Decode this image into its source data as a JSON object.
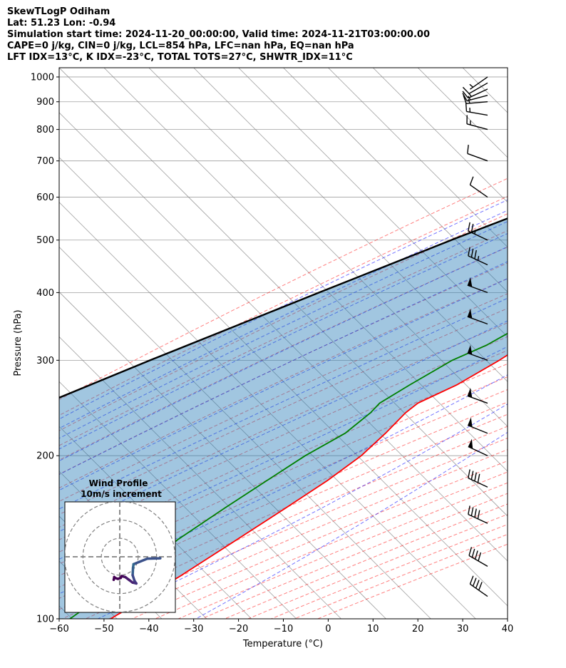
{
  "header": {
    "lines": [
      "SkewTLogP Odiham",
      "Lat: 51.23   Lon: -0.94",
      "Simulation start time: 2024-11-20_00:00:00, Valid time: 2024-11-21T03:00:00.00",
      "CAPE=0 j/kg, CIN=0 j/kg, LCL=854 hPa, LFC=nan hPa, EQ=nan hPa",
      "LFT IDX=13$^\\circ$C, K IDX=-23$^\\circ$C, TOTAL TOTS=27$^\\circ$C, SHWTR_IDX=11$^\\circ$C"
    ]
  },
  "chart_data": {
    "type": "line",
    "subtype": "skew-T log-P",
    "xlabel": "Temperature ($^\\circ$C)",
    "ylabel": "Pressure (hPa)",
    "xlim": [
      -60,
      40
    ],
    "ylim": [
      1040,
      100
    ],
    "xticks": [
      -60,
      -50,
      -40,
      -30,
      -20,
      -10,
      0,
      10,
      20,
      30,
      40
    ],
    "yticks": [
      1000,
      900,
      800,
      700,
      600,
      500,
      400,
      300,
      200,
      100
    ],
    "y_scale": "log",
    "grid": true,
    "colors": {
      "temperature": "#ff0000",
      "dewpoint": "#008000",
      "parcel": "#000000",
      "cape_fill": "#1f77b4",
      "dry_adiabats": "#ff0000",
      "moist_adiabats": "#0000ff",
      "isotherms": "#808080"
    },
    "series": [
      {
        "role": "temperature",
        "points": [
          [
            1000,
            3.5
          ],
          [
            980,
            2.4
          ],
          [
            950,
            1.8
          ],
          [
            900,
            0.4
          ],
          [
            850,
            -0.9
          ],
          [
            800,
            -2.4
          ],
          [
            750,
            -4.7
          ],
          [
            700,
            -7.8
          ],
          [
            650,
            -11.2
          ],
          [
            600,
            -14
          ],
          [
            550,
            -15.4
          ],
          [
            500,
            -15.6
          ],
          [
            450,
            -14.6
          ],
          [
            400,
            -14.1
          ],
          [
            350,
            -15.6
          ],
          [
            320,
            -17.6
          ],
          [
            300,
            -19.5
          ],
          [
            270,
            -23.5
          ],
          [
            250,
            -28.1
          ],
          [
            240,
            -28.7
          ],
          [
            220,
            -28.6
          ],
          [
            200,
            -29
          ],
          [
            180,
            -31
          ],
          [
            160,
            -34.2
          ],
          [
            140,
            -38
          ],
          [
            120,
            -42.5
          ],
          [
            110,
            -45.3
          ],
          [
            100,
            -48.5
          ]
        ]
      },
      {
        "role": "dewpoint",
        "points": [
          [
            1000,
            -3.5
          ],
          [
            990,
            -8.7
          ],
          [
            970,
            -9.6
          ],
          [
            960,
            -9.5
          ],
          [
            950,
            -9.9
          ],
          [
            900,
            -18.2
          ],
          [
            850,
            -32.1
          ],
          [
            800,
            -33.7
          ],
          [
            750,
            -32.2
          ],
          [
            700,
            -30.1
          ],
          [
            650,
            -29.3
          ],
          [
            600,
            -26.3
          ],
          [
            550,
            -22.5
          ],
          [
            500,
            -21.7
          ],
          [
            450,
            -20.4
          ],
          [
            400,
            -20.7
          ],
          [
            350,
            -22
          ],
          [
            320,
            -25.7
          ],
          [
            300,
            -30
          ],
          [
            270,
            -34
          ],
          [
            250,
            -36.6
          ],
          [
            240,
            -36.5
          ],
          [
            220,
            -37.6
          ],
          [
            200,
            -41.5
          ],
          [
            180,
            -44.5
          ],
          [
            160,
            -47.8
          ],
          [
            140,
            -51.2
          ],
          [
            120,
            -53.2
          ],
          [
            110,
            -55.5
          ],
          [
            100,
            -57.6
          ]
        ]
      },
      {
        "role": "parcel",
        "points": [
          [
            1000,
            2.5
          ],
          [
            950,
            -1.9
          ],
          [
            900,
            -6.5
          ],
          [
            854,
            -11
          ],
          [
            800,
            -16.4
          ],
          [
            700,
            -28.1
          ],
          [
            600,
            -41.7
          ],
          [
            500,
            -57
          ],
          [
            400,
            -74.8
          ],
          [
            300,
            -97.4
          ],
          [
            200,
            -127.8
          ],
          [
            150,
            -147.7
          ],
          [
            100,
            -173.1
          ]
        ]
      }
    ],
    "wind_barbs": [
      {
        "pressure": 1000,
        "speed_kt": 5,
        "direction": 235
      },
      {
        "pressure": 975,
        "speed_kt": 10,
        "direction": 240
      },
      {
        "pressure": 950,
        "speed_kt": 15,
        "direction": 245
      },
      {
        "pressure": 925,
        "speed_kt": 15,
        "direction": 255
      },
      {
        "pressure": 900,
        "speed_kt": 15,
        "direction": 265
      },
      {
        "pressure": 850,
        "speed_kt": 15,
        "direction": 280
      },
      {
        "pressure": 800,
        "speed_kt": 15,
        "direction": 285
      },
      {
        "pressure": 700,
        "speed_kt": 10,
        "direction": 290
      },
      {
        "pressure": 600,
        "speed_kt": 10,
        "direction": 305
      },
      {
        "pressure": 500,
        "speed_kt": 25,
        "direction": 295
      },
      {
        "pressure": 450,
        "speed_kt": 35,
        "direction": 295
      },
      {
        "pressure": 400,
        "speed_kt": 50,
        "direction": 290
      },
      {
        "pressure": 350,
        "speed_kt": 50,
        "direction": 290
      },
      {
        "pressure": 300,
        "speed_kt": 50,
        "direction": 290
      },
      {
        "pressure": 250,
        "speed_kt": 50,
        "direction": 290
      },
      {
        "pressure": 220,
        "speed_kt": 50,
        "direction": 292
      },
      {
        "pressure": 200,
        "speed_kt": 50,
        "direction": 295
      },
      {
        "pressure": 175,
        "speed_kt": 40,
        "direction": 295
      },
      {
        "pressure": 150,
        "speed_kt": 40,
        "direction": 295
      },
      {
        "pressure": 125,
        "speed_kt": 40,
        "direction": 300
      },
      {
        "pressure": 110,
        "speed_kt": 40,
        "direction": 305
      }
    ],
    "hodograph": {
      "title": "Wind Profile",
      "subtitle": "10m/s increment",
      "rings_ms": [
        10,
        20,
        30
      ],
      "range_ms": [
        -30,
        30
      ],
      "colormap": "viridis",
      "points_uv": [
        [
          22,
          0.8
        ],
        [
          15,
          1.0
        ],
        [
          7.5,
          4.0
        ],
        [
          7.2,
          6.0
        ],
        [
          7.0,
          10.0
        ],
        [
          8.0,
          13.0
        ],
        [
          9.0,
          14.5
        ],
        [
          7.0,
          14.0
        ],
        [
          5.0,
          12.5
        ],
        [
          3.0,
          11.0
        ],
        [
          1.0,
          10.5
        ],
        [
          0.5,
          11.5
        ],
        [
          -1.0,
          12.0
        ],
        [
          -2.5,
          11.5
        ],
        [
          -3.0,
          11.0
        ],
        [
          -3.3,
          12.5
        ]
      ]
    }
  }
}
